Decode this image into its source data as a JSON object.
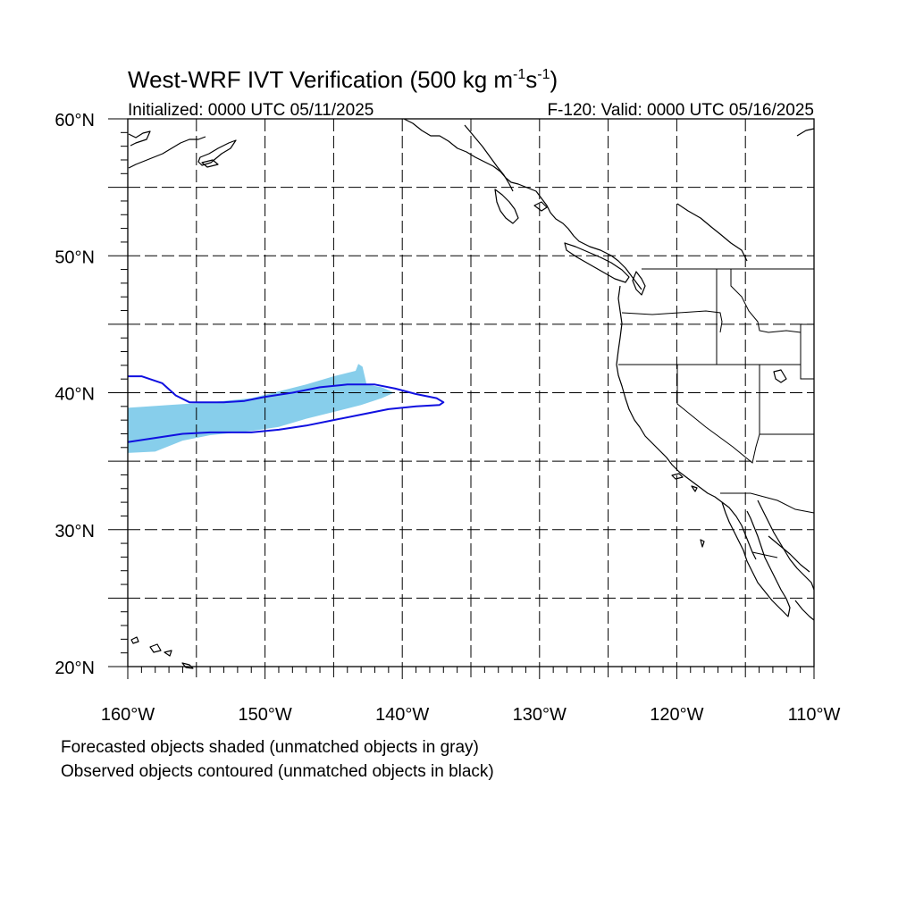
{
  "title": {
    "main": "West-WRF IVT Verification (500 kg m",
    "sup1": "-1",
    "mid": "s",
    "sup2": "-1",
    "end": ")"
  },
  "initialized": "Initialized: 0000 UTC 05/11/2025",
  "valid": "F-120: Valid: 0000 UTC 05/16/2025",
  "map": {
    "lon_range": [
      -160,
      -110
    ],
    "lat_range": [
      20,
      60
    ],
    "lat_ticks": [
      {
        "lat": 60,
        "label": "60°N"
      },
      {
        "lat": 50,
        "label": "50°N"
      },
      {
        "lat": 40,
        "label": "40°N"
      },
      {
        "lat": 30,
        "label": "30°N"
      },
      {
        "lat": 20,
        "label": "20°N"
      }
    ],
    "lon_ticks": [
      {
        "lon": -160,
        "label": "160°W"
      },
      {
        "lon": -150,
        "label": "150°W"
      },
      {
        "lon": -140,
        "label": "140°W"
      },
      {
        "lon": -130,
        "label": "130°W"
      },
      {
        "lon": -120,
        "label": "120°W"
      },
      {
        "lon": -110,
        "label": "110°W"
      }
    ],
    "grid_lons": [
      -155,
      -150,
      -145,
      -140,
      -135,
      -130,
      -125,
      -120,
      -115
    ],
    "grid_lats": [
      25,
      30,
      35,
      40,
      45,
      50,
      55
    ],
    "colors": {
      "forecast_fill": "#87ceeb",
      "observed_contour": "#1010e0",
      "coastline": "#000000"
    },
    "forecast_object": [
      [
        -160,
        38.9
      ],
      [
        -157,
        39.1
      ],
      [
        -154,
        39.3
      ],
      [
        -151,
        39.6
      ],
      [
        -149,
        40.1
      ],
      [
        -147,
        40.6
      ],
      [
        -145,
        41.2
      ],
      [
        -143.4,
        41.6
      ],
      [
        -143.2,
        42.1
      ],
      [
        -142.9,
        41.9
      ],
      [
        -142.6,
        40.6
      ],
      [
        -141.5,
        40.4
      ],
      [
        -140.6,
        40.0
      ],
      [
        -141.5,
        39.6
      ],
      [
        -143.0,
        39.1
      ],
      [
        -145,
        38.6
      ],
      [
        -147,
        38.1
      ],
      [
        -149,
        37.5
      ],
      [
        -151,
        37.2
      ],
      [
        -154,
        36.9
      ],
      [
        -156,
        36.5
      ],
      [
        -158,
        35.7
      ],
      [
        -160,
        35.6
      ]
    ],
    "observed_object": [
      [
        -160,
        41.2
      ],
      [
        -159,
        41.2
      ],
      [
        -157.5,
        40.7
      ],
      [
        -156.5,
        39.8
      ],
      [
        -155.5,
        39.3
      ],
      [
        -153,
        39.3
      ],
      [
        -151.5,
        39.4
      ],
      [
        -150,
        39.7
      ],
      [
        -148,
        40.0
      ],
      [
        -146,
        40.4
      ],
      [
        -144,
        40.6
      ],
      [
        -142,
        40.6
      ],
      [
        -140.5,
        40.3
      ],
      [
        -139,
        39.9
      ],
      [
        -137.5,
        39.6
      ],
      [
        -137,
        39.3
      ],
      [
        -137.3,
        39.1
      ],
      [
        -139,
        39.0
      ],
      [
        -141,
        38.8
      ],
      [
        -143,
        38.4
      ],
      [
        -145,
        38.0
      ],
      [
        -147,
        37.6
      ],
      [
        -149,
        37.3
      ],
      [
        -151,
        37.1
      ],
      [
        -154,
        37.1
      ],
      [
        -156,
        37.0
      ],
      [
        -158,
        36.7
      ],
      [
        -160,
        36.4
      ]
    ]
  },
  "footnotes": [
    "Forecasted objects shaded (unmatched objects in gray)",
    "Observed objects contoured (unmatched objects in black)"
  ]
}
